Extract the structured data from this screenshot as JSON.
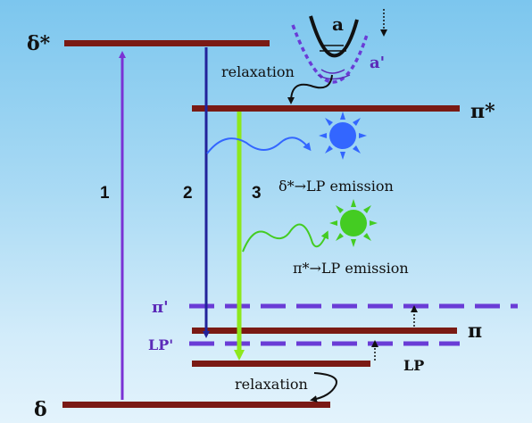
{
  "levels": {
    "delta_star": "δ*",
    "pi_star": "π*",
    "pi_prime": "π'",
    "pi": "π",
    "lp_prime": "LP'",
    "lp": "LP",
    "delta": "δ"
  },
  "transitions": {
    "t1": "1",
    "t2": "2",
    "t3": "3"
  },
  "annotations": {
    "relaxation_top": "relaxation",
    "relaxation_bottom": "relaxation",
    "emission_delta": "δ*→LP emission",
    "emission_pi": "π*→LP emission"
  },
  "potential": {
    "a": "a",
    "a_prime": "a'"
  },
  "colors": {
    "level": "#7a1a14",
    "dashed": "#6a3cd6",
    "arrow1": "#7a32d4",
    "arrow2": "#22229a",
    "arrow3": "#8ee81c",
    "emission_blue": "#3366ff",
    "emission_green": "#44cc22",
    "background_top": "#7cc6ee",
    "background_bottom": "#e3f3fc"
  },
  "icons": [
    "blue-sun-icon",
    "green-sun-icon",
    "potential-well-icon"
  ]
}
